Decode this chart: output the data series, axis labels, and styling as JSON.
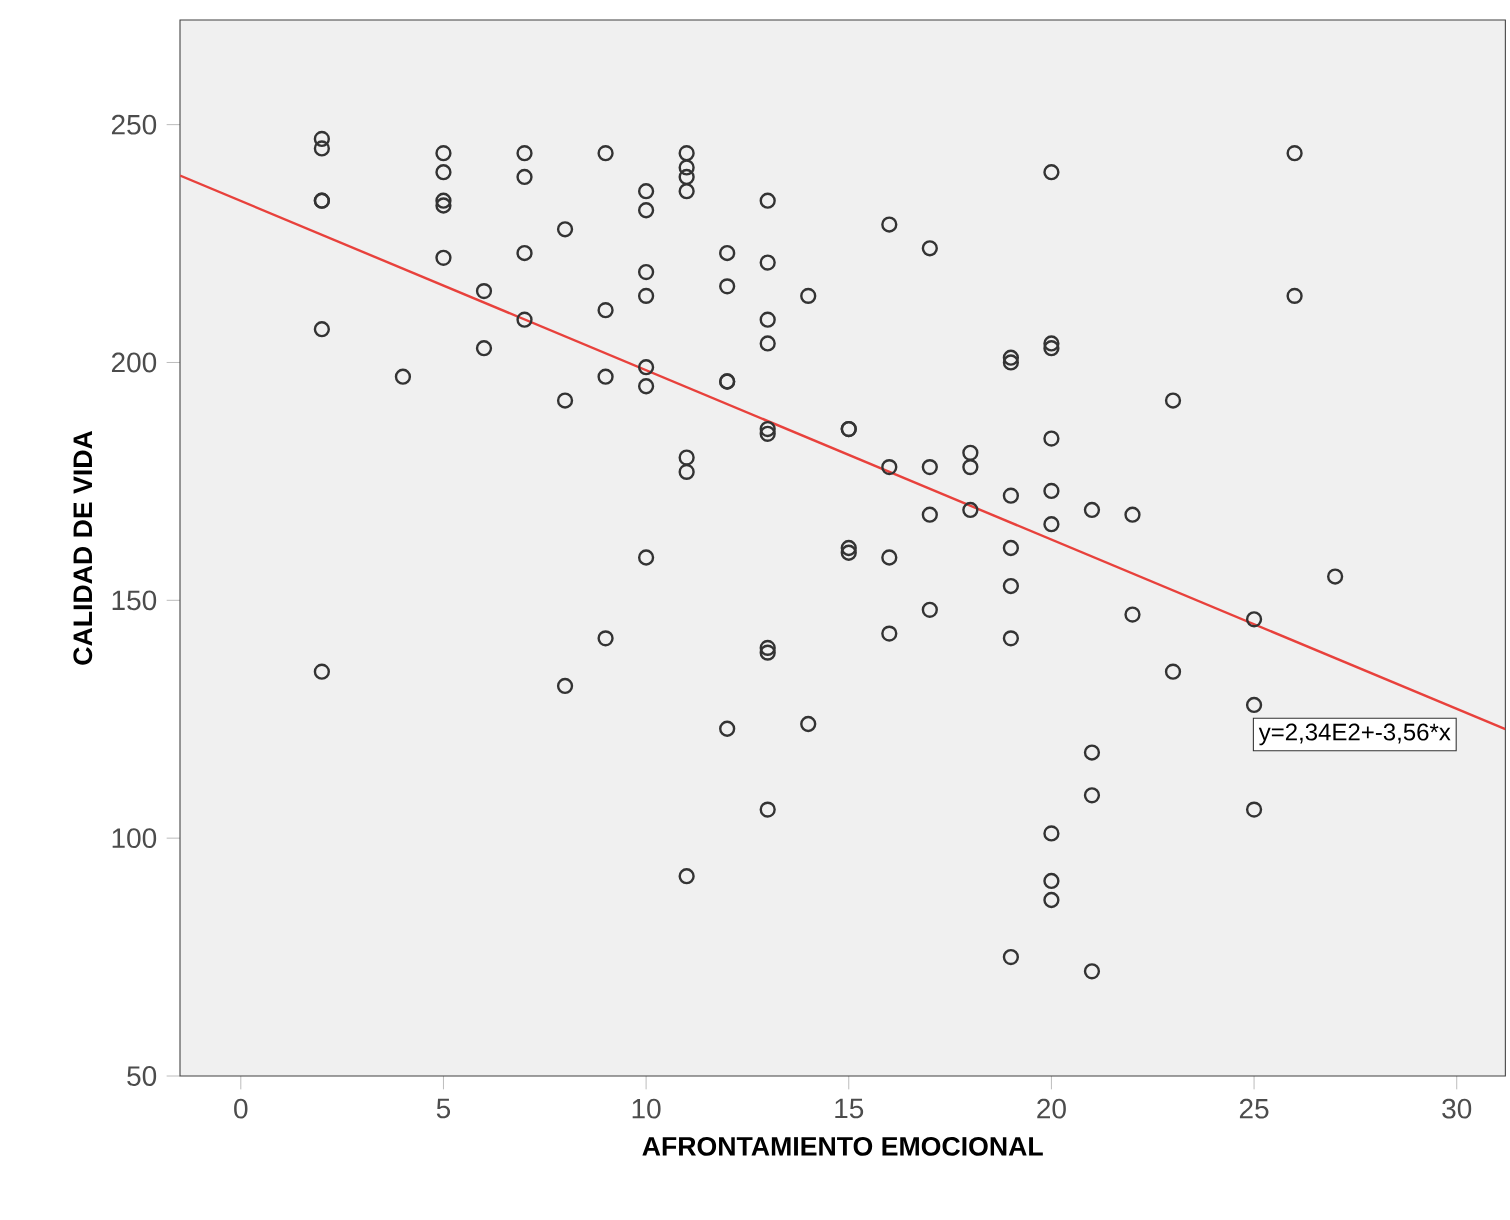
{
  "chart_data": {
    "type": "scatter",
    "xlabel": "AFRONTAMIENTO EMOCIONAL",
    "ylabel": "CALIDAD DE VIDA",
    "xlim": [
      -1.5,
      31.2
    ],
    "ylim": [
      50,
      272
    ],
    "xticks": [
      0,
      5,
      10,
      15,
      20,
      25,
      30
    ],
    "yticks": [
      50,
      100,
      150,
      200,
      250
    ],
    "annotations": [
      {
        "text": "y=2,34E2+-3,56*x",
        "x": 30,
        "y": 127
      }
    ],
    "series": [
      {
        "marker": "circle",
        "color": "#333333",
        "x": [
          2,
          2,
          2,
          2,
          2,
          2,
          4,
          5,
          5,
          5,
          5,
          5,
          6,
          6,
          7,
          7,
          7,
          7,
          8,
          8,
          8,
          9,
          9,
          9,
          9,
          10,
          10,
          10,
          10,
          10,
          10,
          10,
          11,
          11,
          11,
          11,
          11,
          11,
          11,
          12,
          12,
          12,
          12,
          12,
          13,
          13,
          13,
          13,
          13,
          13,
          13,
          13,
          13,
          14,
          14,
          15,
          15,
          15,
          15,
          16,
          16,
          16,
          16,
          17,
          17,
          17,
          17,
          18,
          18,
          18,
          19,
          19,
          19,
          19,
          19,
          19,
          19,
          20,
          20,
          20,
          20,
          20,
          20,
          20,
          20,
          20,
          21,
          21,
          21,
          21,
          22,
          22,
          23,
          23,
          25,
          25,
          25,
          26,
          26,
          27
        ],
        "values": [
          247,
          245,
          234,
          234,
          207,
          135,
          197,
          244,
          240,
          234,
          233,
          222,
          215,
          203,
          244,
          239,
          223,
          209,
          228,
          192,
          132,
          244,
          211,
          197,
          142,
          236,
          232,
          219,
          214,
          199,
          195,
          159,
          244,
          241,
          239,
          236,
          180,
          177,
          92,
          223,
          216,
          196,
          196,
          123,
          234,
          221,
          209,
          204,
          186,
          185,
          140,
          139,
          106,
          214,
          124,
          186,
          186,
          161,
          160,
          229,
          178,
          159,
          143,
          224,
          178,
          168,
          148,
          181,
          178,
          169,
          201,
          200,
          172,
          161,
          153,
          142,
          75,
          240,
          204,
          203,
          184,
          173,
          166,
          101,
          91,
          87,
          169,
          118,
          109,
          72,
          168,
          147,
          192,
          135,
          146,
          128,
          106,
          244,
          214,
          155
        ]
      },
      {
        "type": "line",
        "color": "#e8413c",
        "x": [
          -1.5,
          31.2
        ],
        "values": [
          239.3,
          122.9
        ]
      }
    ]
  }
}
